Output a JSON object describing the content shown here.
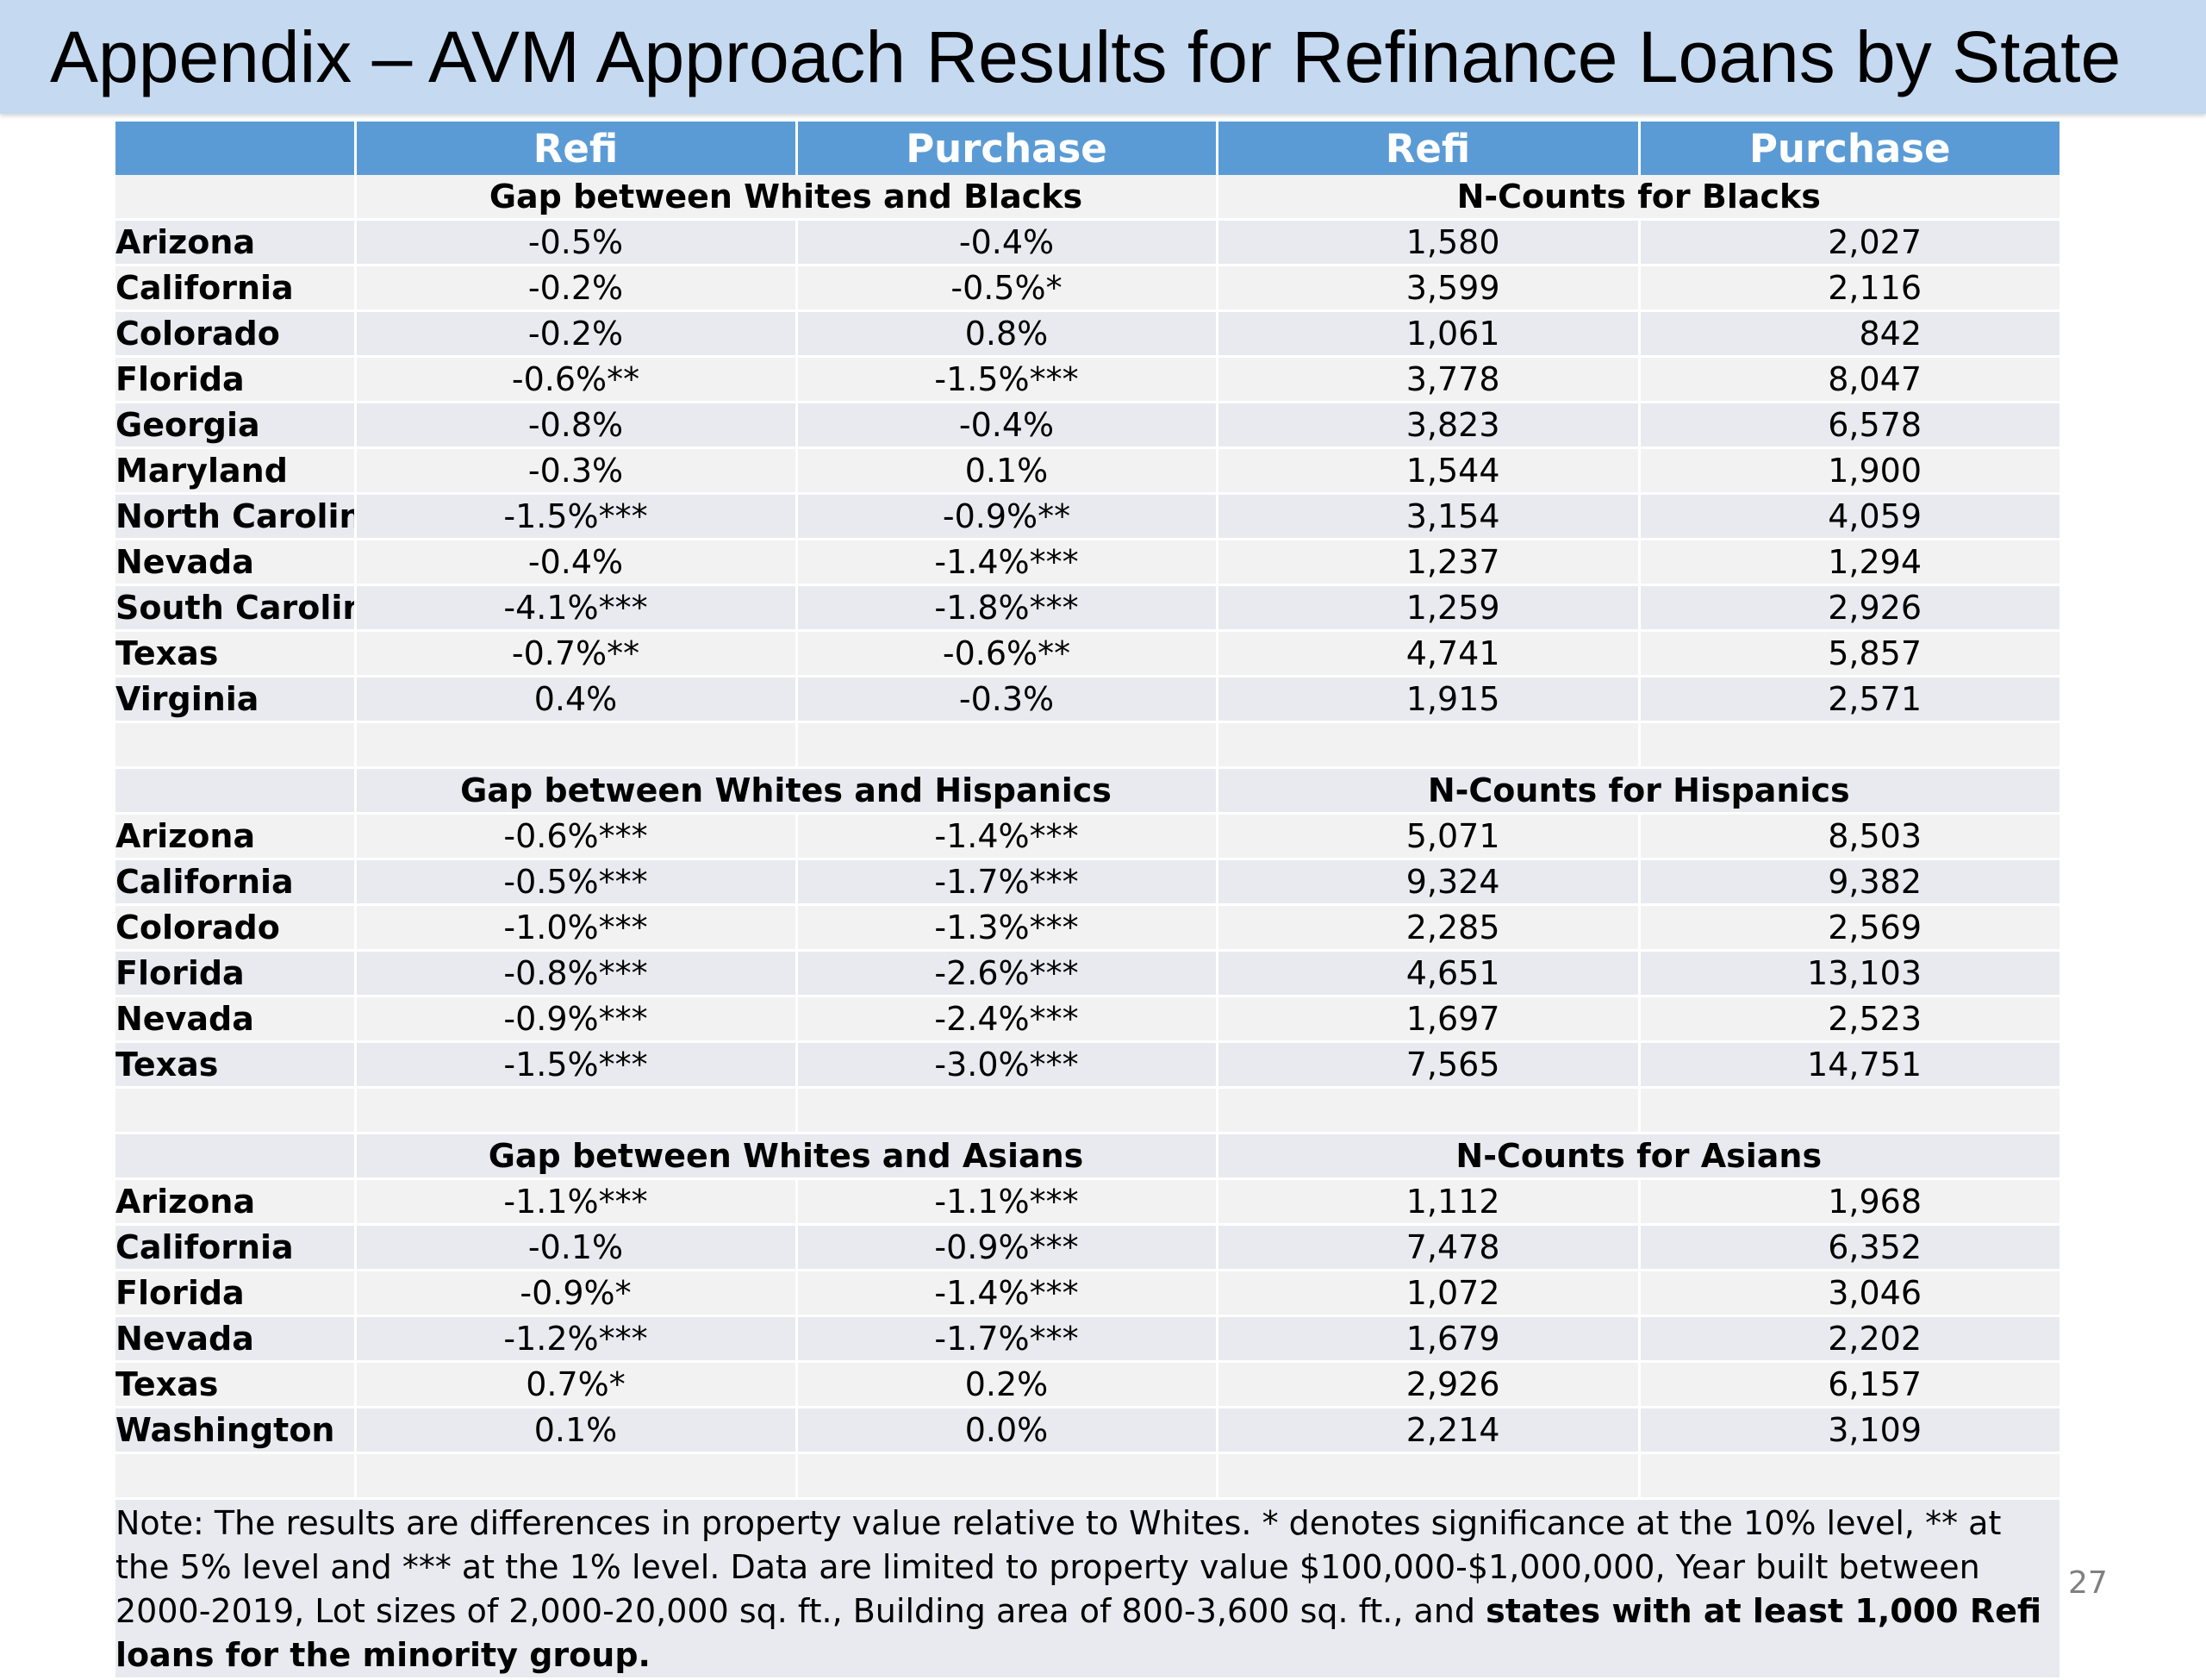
{
  "slide": {
    "title": "Appendix – AVM Approach Results for Refinance Loans by State",
    "page_number": "27"
  },
  "table": {
    "header": [
      "",
      "Refi",
      "Purchase",
      "Refi",
      "Purchase"
    ],
    "sections": [
      {
        "gap_title": "Gap between Whites and Blacks",
        "count_title": "N-Counts for Blacks",
        "rows": [
          {
            "state": "Arizona",
            "gap_refi": "-0.5%",
            "gap_purchase": "-0.4%",
            "n_refi": "1,580",
            "n_purchase": "2,027"
          },
          {
            "state": "California",
            "gap_refi": "-0.2%",
            "gap_purchase": "-0.5%*",
            "n_refi": "3,599",
            "n_purchase": "2,116"
          },
          {
            "state": "Colorado",
            "gap_refi": "-0.2%",
            "gap_purchase": "0.8%",
            "n_refi": "1,061",
            "n_purchase": "842"
          },
          {
            "state": "Florida",
            "gap_refi": "-0.6%**",
            "gap_purchase": "-1.5%***",
            "n_refi": "3,778",
            "n_purchase": "8,047"
          },
          {
            "state": "Georgia",
            "gap_refi": "-0.8%",
            "gap_purchase": "-0.4%",
            "n_refi": "3,823",
            "n_purchase": "6,578"
          },
          {
            "state": "Maryland",
            "gap_refi": "-0.3%",
            "gap_purchase": "0.1%",
            "n_refi": "1,544",
            "n_purchase": "1,900"
          },
          {
            "state": "North Carolina",
            "gap_refi": "-1.5%***",
            "gap_purchase": "-0.9%**",
            "n_refi": "3,154",
            "n_purchase": "4,059"
          },
          {
            "state": "Nevada",
            "gap_refi": "-0.4%",
            "gap_purchase": "-1.4%***",
            "n_refi": "1,237",
            "n_purchase": "1,294"
          },
          {
            "state": "South Carolina",
            "gap_refi": "-4.1%***",
            "gap_purchase": "-1.8%***",
            "n_refi": "1,259",
            "n_purchase": "2,926"
          },
          {
            "state": "Texas",
            "gap_refi": "-0.7%**",
            "gap_purchase": "-0.6%**",
            "n_refi": "4,741",
            "n_purchase": "5,857"
          },
          {
            "state": "Virginia",
            "gap_refi": "0.4%",
            "gap_purchase": "-0.3%",
            "n_refi": "1,915",
            "n_purchase": "2,571"
          }
        ]
      },
      {
        "gap_title": "Gap between Whites and Hispanics",
        "count_title": "N-Counts for Hispanics",
        "rows": [
          {
            "state": "Arizona",
            "gap_refi": "-0.6%***",
            "gap_purchase": "-1.4%***",
            "n_refi": "5,071",
            "n_purchase": "8,503"
          },
          {
            "state": "California",
            "gap_refi": "-0.5%***",
            "gap_purchase": "-1.7%***",
            "n_refi": "9,324",
            "n_purchase": "9,382"
          },
          {
            "state": "Colorado",
            "gap_refi": "-1.0%***",
            "gap_purchase": "-1.3%***",
            "n_refi": "2,285",
            "n_purchase": "2,569"
          },
          {
            "state": "Florida",
            "gap_refi": "-0.8%***",
            "gap_purchase": "-2.6%***",
            "n_refi": "4,651",
            "n_purchase": "13,103"
          },
          {
            "state": "Nevada",
            "gap_refi": "-0.9%***",
            "gap_purchase": "-2.4%***",
            "n_refi": "1,697",
            "n_purchase": "2,523"
          },
          {
            "state": "Texas",
            "gap_refi": "-1.5%***",
            "gap_purchase": "-3.0%***",
            "n_refi": "7,565",
            "n_purchase": "14,751"
          }
        ]
      },
      {
        "gap_title": "Gap between Whites and Asians",
        "count_title": "N-Counts for Asians",
        "rows": [
          {
            "state": "Arizona",
            "gap_refi": "-1.1%***",
            "gap_purchase": "-1.1%***",
            "n_refi": "1,112",
            "n_purchase": "1,968"
          },
          {
            "state": "California",
            "gap_refi": "-0.1%",
            "gap_purchase": "-0.9%***",
            "n_refi": "7,478",
            "n_purchase": "6,352"
          },
          {
            "state": "Florida",
            "gap_refi": "-0.9%*",
            "gap_purchase": "-1.4%***",
            "n_refi": "1,072",
            "n_purchase": "3,046"
          },
          {
            "state": "Nevada",
            "gap_refi": "-1.2%***",
            "gap_purchase": "-1.7%***",
            "n_refi": "1,679",
            "n_purchase": "2,202"
          },
          {
            "state": "Texas",
            "gap_refi": "0.7%*",
            "gap_purchase": "0.2%",
            "n_refi": "2,926",
            "n_purchase": "6,157"
          },
          {
            "state": "Washington",
            "gap_refi": "0.1%",
            "gap_purchase": "0.0%",
            "n_refi": "2,214",
            "n_purchase": "3,109"
          }
        ]
      }
    ],
    "note": {
      "text": "Note: The results are differences in property value relative to Whites. * denotes significance at the 10% level, ** at the 5% level and *** at the 1% level.  Data are limited to property value $100,000-$1,000,000, Year built between 2000-2019, Lot sizes of 2,000-20,000 sq. ft., Building area of 800-3,600 sq. ft., and ",
      "bold_text": "states with at least 1,000 Refi loans for the minority group."
    }
  }
}
